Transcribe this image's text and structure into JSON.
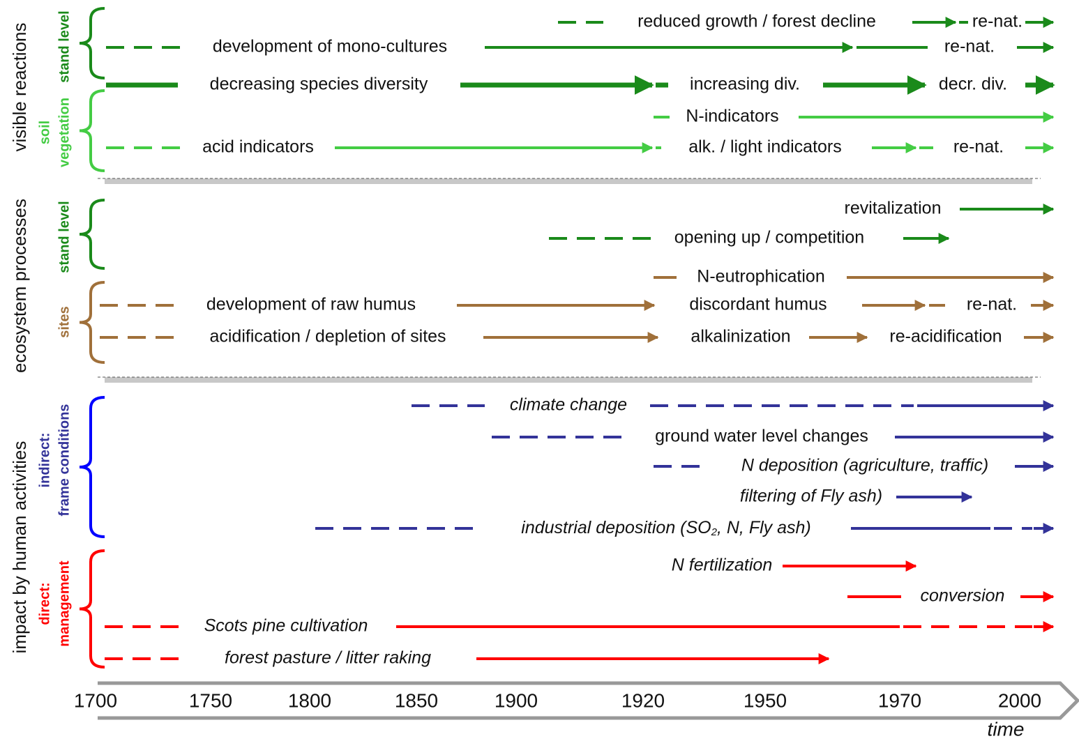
{
  "side_labels": [
    "visible reactions",
    "ecosystem processes",
    "impact by human activities"
  ],
  "group_labels": [
    [
      "stand level"
    ],
    [
      "soil",
      "vegetation"
    ],
    [
      "stand level"
    ],
    [
      "sites"
    ],
    [
      "indirect:",
      "frame conditions"
    ],
    [
      "direct:",
      "management"
    ]
  ],
  "rows": [
    [
      "reduced growth / forest decline",
      "re-nat."
    ],
    [
      "development of mono-cultures",
      "re-nat."
    ],
    [
      "decreasing species diversity",
      "increasing div.",
      "decr. div."
    ],
    [
      "N-indicators"
    ],
    [
      "acid indicators",
      "alk. / light indicators",
      "re-nat."
    ],
    [
      "revitalization"
    ],
    [
      "opening up / competition"
    ],
    [
      "N-eutrophication"
    ],
    [
      "development of raw humus",
      "discordant humus",
      "re-nat."
    ],
    [
      "acidification / depletion of sites",
      "alkalinization",
      "re-acidification"
    ],
    [
      "climate change"
    ],
    [
      "ground water level changes"
    ],
    [
      "N deposition (agriculture, traffic)"
    ],
    [
      "filtering of Fly ash)"
    ],
    [
      [
        "industrial deposition (SO",
        "2",
        ", N, Fly ash)"
      ]
    ],
    [
      "N fertilization"
    ],
    [
      "conversion"
    ],
    [
      "Scots pine cultivation"
    ],
    [
      "forest pasture / litter raking"
    ]
  ],
  "axis": {
    "ticks": [
      1700,
      1750,
      1800,
      1850,
      1900,
      1920,
      1950,
      1970,
      2000
    ],
    "label": "time"
  }
}
